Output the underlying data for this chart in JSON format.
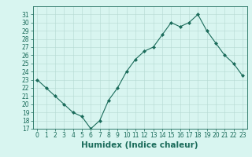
{
  "x": [
    0,
    1,
    2,
    3,
    4,
    5,
    6,
    7,
    8,
    9,
    10,
    11,
    12,
    13,
    14,
    15,
    16,
    17,
    18,
    19,
    20,
    21,
    22,
    23
  ],
  "y": [
    23,
    22,
    21,
    20,
    19,
    18.5,
    17,
    18,
    20.5,
    22,
    24,
    25.5,
    26.5,
    27,
    28.5,
    30,
    29.5,
    30,
    31,
    29,
    27.5,
    26,
    25,
    23.5
  ],
  "line_color": "#1a6b5a",
  "marker": "D",
  "marker_size": 2,
  "bg_color": "#d8f5f0",
  "grid_color": "#b5d9d2",
  "xlabel": "Humidex (Indice chaleur)",
  "xlim": [
    -0.5,
    23.5
  ],
  "ylim": [
    17,
    32
  ],
  "yticks": [
    17,
    18,
    19,
    20,
    21,
    22,
    23,
    24,
    25,
    26,
    27,
    28,
    29,
    30,
    31
  ],
  "xticks": [
    0,
    1,
    2,
    3,
    4,
    5,
    6,
    7,
    8,
    9,
    10,
    11,
    12,
    13,
    14,
    15,
    16,
    17,
    18,
    19,
    20,
    21,
    22,
    23
  ],
  "tick_label_fontsize": 5.5,
  "xlabel_fontsize": 7.5,
  "axis_color": "#1a6b5a",
  "linewidth": 0.8
}
